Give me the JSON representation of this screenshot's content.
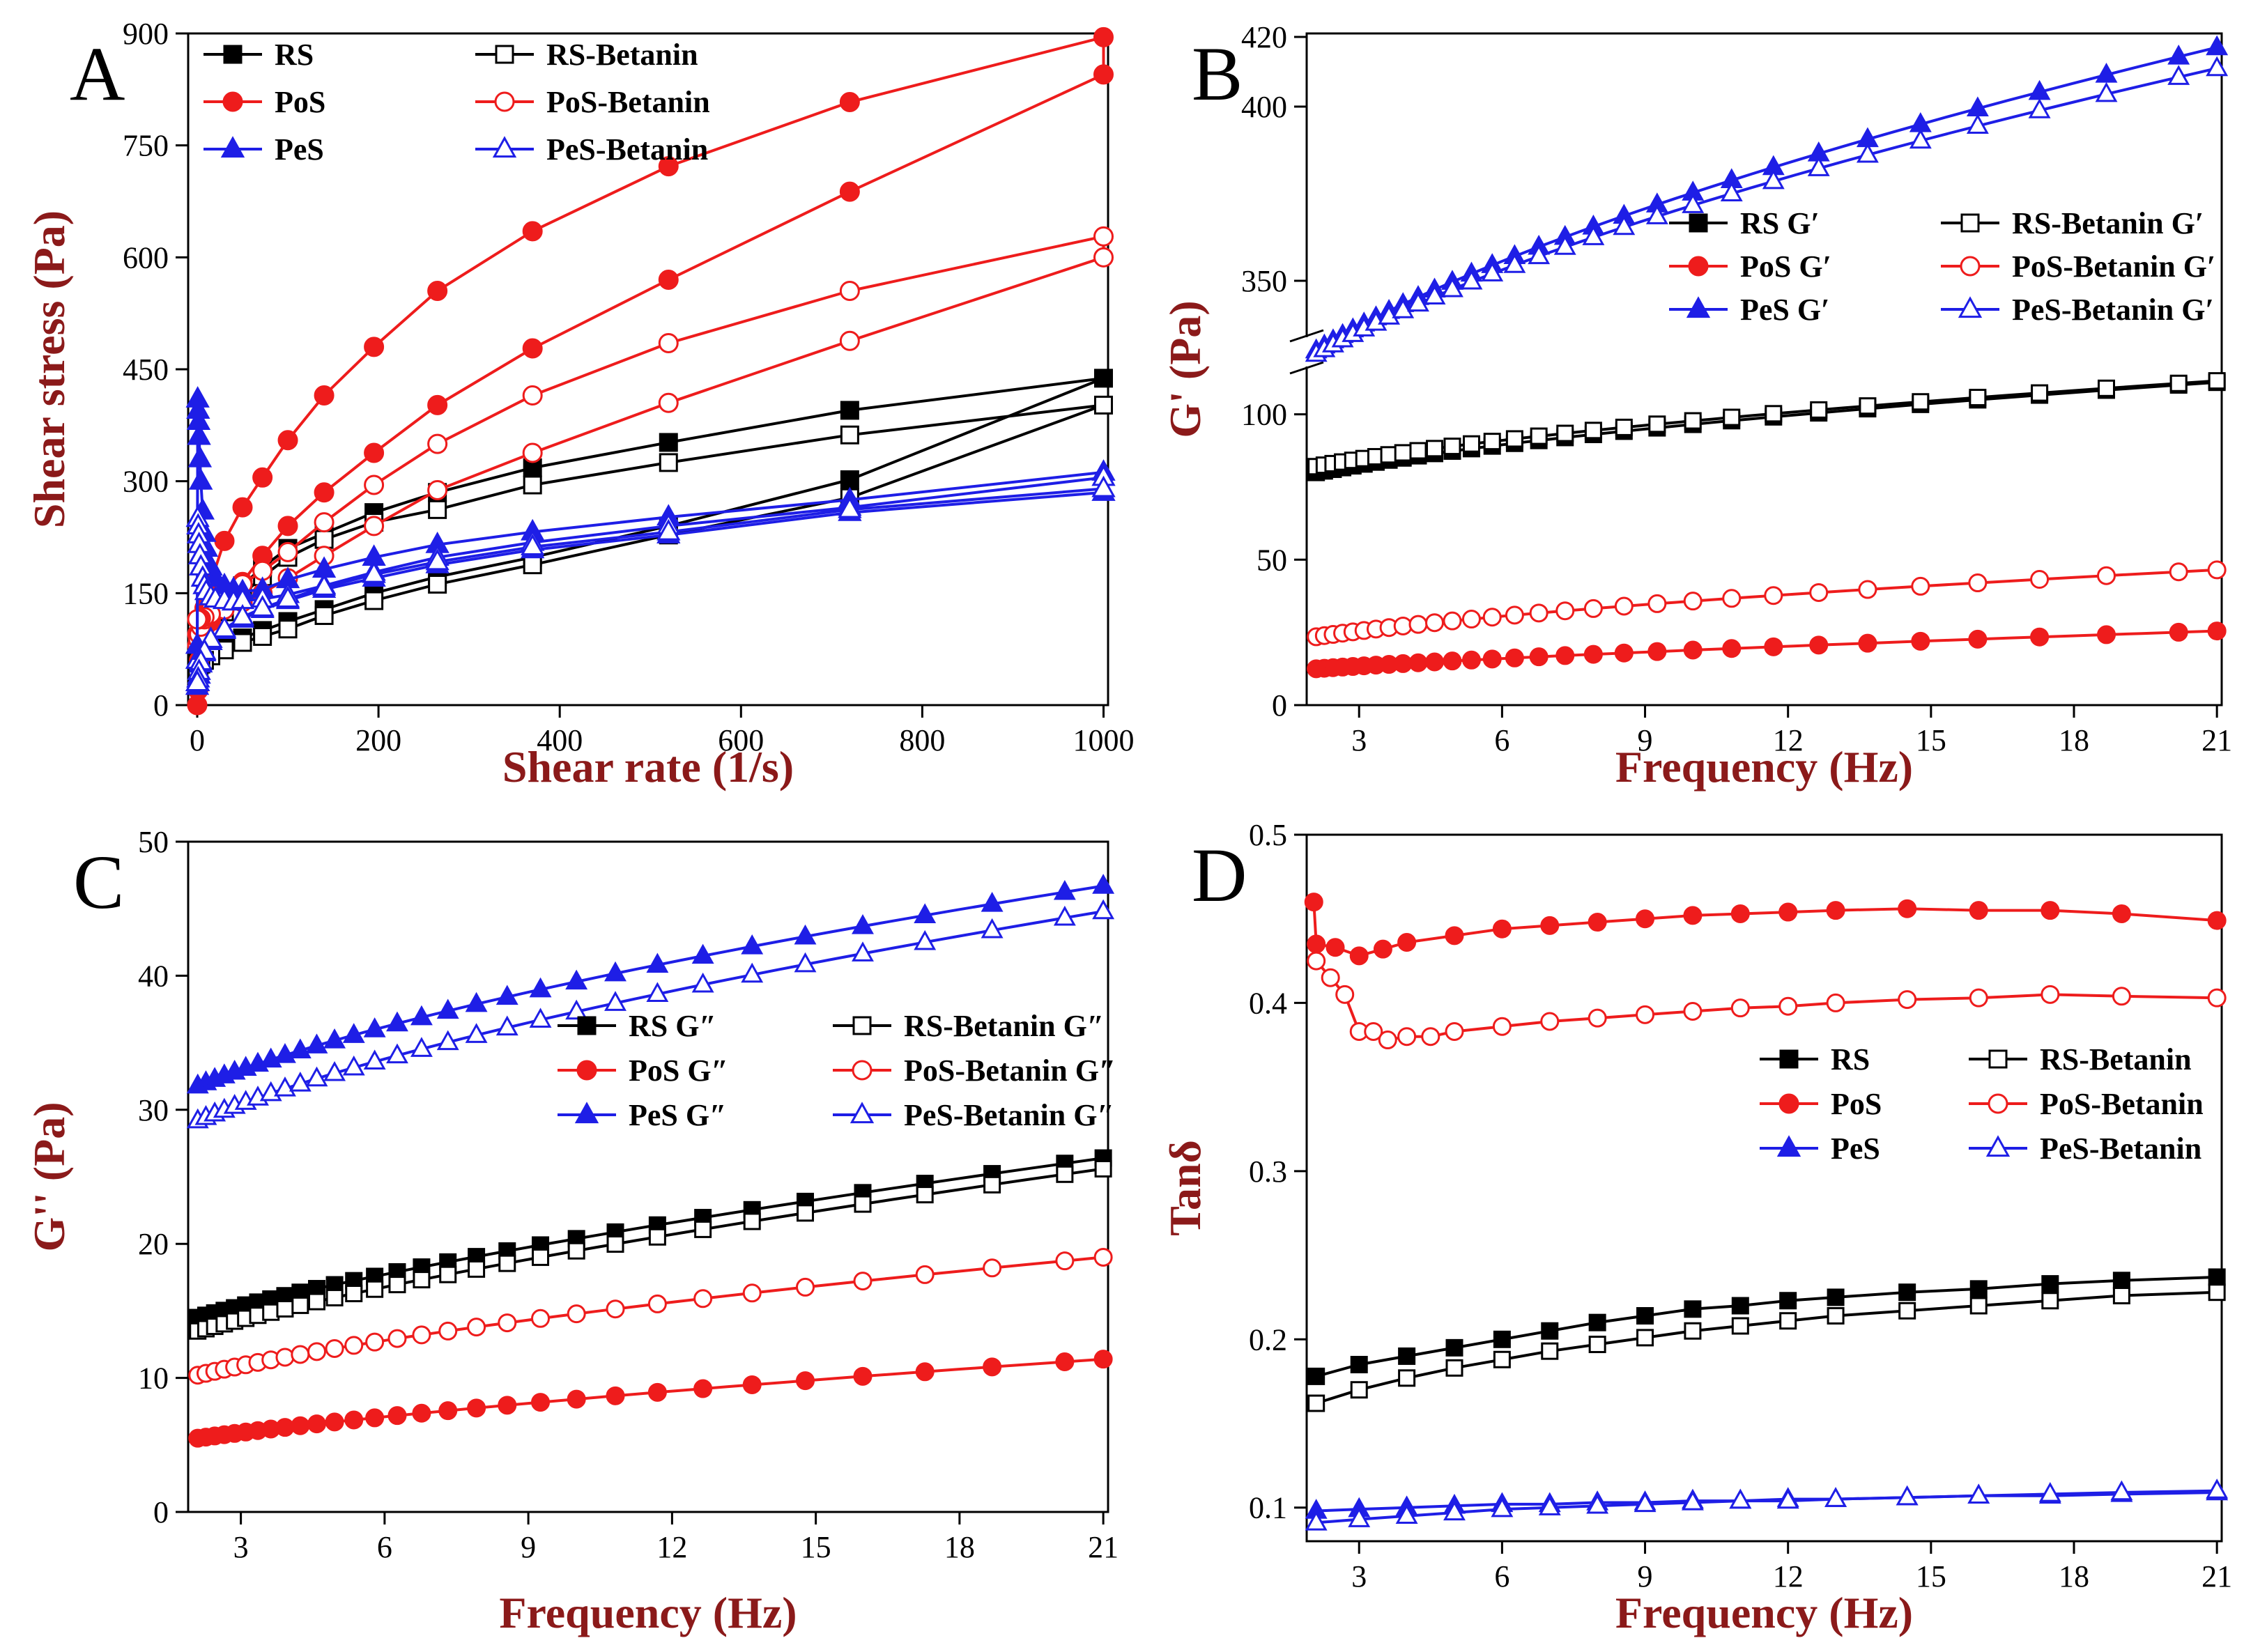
{
  "colors": {
    "RS": "#000000",
    "PoS": "#ee1c1c",
    "PeS": "#1e1ee6",
    "axis_title": "#8b1a1a"
  },
  "chart_data": [
    {
      "panel": "A",
      "type": "line",
      "xlabel": "Shear rate (1/s)",
      "ylabel": "Shear stress (Pa)",
      "xlim": [
        -10,
        1005
      ],
      "ylim": [
        0,
        900
      ],
      "xticks": [
        0,
        200,
        400,
        600,
        800,
        1000
      ],
      "yticks": [
        0,
        150,
        300,
        450,
        600,
        750,
        900
      ],
      "legend_position": "top-left",
      "legend_cols": 2,
      "series": [
        {
          "name": "RS",
          "color": "#000000",
          "marker": "square",
          "filled": true,
          "label": "RS",
          "x": [
            0,
            1,
            2,
            4,
            8,
            15,
            30,
            50,
            72,
            100,
            140,
            195,
            265,
            370,
            520,
            720,
            1000,
            720,
            520,
            370,
            265,
            195,
            140,
            100,
            72,
            50,
            30,
            15,
            8,
            4,
            2,
            1,
            0
          ],
          "y": [
            50,
            60,
            68,
            80,
            95,
            112,
            135,
            160,
            185,
            210,
            230,
            258,
            285,
            318,
            352,
            395,
            438,
            302,
            240,
            198,
            172,
            150,
            128,
            112,
            100,
            90,
            80,
            72,
            66,
            62,
            58,
            55,
            52
          ]
        },
        {
          "name": "RS-Betanin",
          "color": "#000000",
          "marker": "square",
          "filled": false,
          "label": "RS-Betanin",
          "x": [
            0,
            1,
            2,
            4,
            8,
            15,
            30,
            50,
            72,
            100,
            140,
            195,
            265,
            370,
            520,
            720,
            1000,
            720,
            520,
            370,
            265,
            195,
            140,
            100,
            72,
            50,
            30,
            15,
            8,
            4,
            2,
            1,
            0
          ],
          "y": [
            40,
            50,
            58,
            70,
            82,
            100,
            125,
            148,
            172,
            198,
            222,
            245,
            262,
            295,
            325,
            362,
            402,
            278,
            228,
            188,
            162,
            140,
            120,
            102,
            92,
            84,
            74,
            66,
            60,
            55,
            50,
            46,
            44
          ]
        },
        {
          "name": "PoS",
          "color": "#ee1c1c",
          "marker": "circle",
          "filled": true,
          "label": "PoS",
          "x": [
            0,
            1,
            2,
            4,
            8,
            15,
            30,
            50,
            72,
            100,
            140,
            195,
            265,
            370,
            520,
            720,
            1000,
            1000,
            720,
            520,
            370,
            265,
            195,
            140,
            100,
            72,
            50,
            30,
            15,
            8,
            4,
            2,
            1,
            0
          ],
          "y": [
            0,
            20,
            60,
            100,
            130,
            165,
            220,
            265,
            305,
            355,
            415,
            480,
            555,
            635,
            722,
            808,
            895,
            845,
            688,
            570,
            478,
            402,
            338,
            285,
            240,
            200,
            165,
            130,
            112,
            102,
            98,
            96,
            95,
            95
          ]
        },
        {
          "name": "PoS-Betanin",
          "color": "#ee1c1c",
          "marker": "circle",
          "filled": false,
          "label": "PoS-Betanin",
          "x": [
            0,
            1,
            2,
            4,
            8,
            15,
            30,
            50,
            72,
            100,
            140,
            195,
            265,
            370,
            520,
            720,
            1000,
            1000,
            720,
            520,
            370,
            265,
            195,
            140,
            100,
            72,
            50,
            30,
            15,
            8,
            4,
            2,
            1,
            0
          ],
          "y": [
            80,
            88,
            95,
            105,
            115,
            128,
            145,
            162,
            180,
            205,
            245,
            295,
            350,
            415,
            485,
            555,
            628,
            600,
            488,
            405,
            338,
            288,
            240,
            200,
            170,
            150,
            138,
            128,
            122,
            118,
            116,
            115,
            115,
            115
          ]
        },
        {
          "name": "PeS",
          "color": "#1e1ee6",
          "marker": "triangle",
          "filled": true,
          "label": "PeS",
          "x": [
            0,
            0.5,
            1,
            1.5,
            2,
            3,
            4,
            6,
            8,
            10,
            15,
            20,
            30,
            40,
            50,
            72,
            100,
            140,
            195,
            265,
            370,
            520,
            720,
            1000,
            1000,
            720,
            520,
            370,
            265,
            195,
            140,
            100,
            72,
            50,
            30,
            15,
            8,
            4,
            2,
            1,
            0
          ],
          "y": [
            80,
            410,
            395,
            380,
            360,
            330,
            300,
            260,
            230,
            210,
            185,
            170,
            160,
            155,
            152,
            155,
            168,
            182,
            198,
            215,
            232,
            252,
            275,
            312,
            285,
            258,
            228,
            208,
            188,
            170,
            155,
            140,
            128,
            115,
            100,
            85,
            70,
            55,
            40,
            30,
            25
          ]
        },
        {
          "name": "PeS-Betanin",
          "color": "#1e1ee6",
          "marker": "triangle",
          "filled": false,
          "label": "PeS-Betanin",
          "x": [
            0,
            0.5,
            1,
            1.5,
            2,
            3,
            4,
            6,
            8,
            10,
            15,
            20,
            30,
            40,
            50,
            72,
            100,
            140,
            195,
            265,
            370,
            520,
            720,
            1000,
            1000,
            720,
            520,
            370,
            265,
            195,
            140,
            100,
            72,
            50,
            30,
            15,
            8,
            4,
            2,
            1,
            0
          ],
          "y": [
            60,
            250,
            240,
            228,
            215,
            200,
            185,
            170,
            160,
            152,
            145,
            142,
            140,
            138,
            140,
            142,
            148,
            160,
            178,
            198,
            218,
            240,
            265,
            305,
            290,
            262,
            232,
            212,
            192,
            175,
            158,
            142,
            130,
            118,
            102,
            88,
            72,
            58,
            45,
            35,
            30
          ]
        }
      ]
    },
    {
      "panel": "B",
      "type": "line",
      "xlabel": "Frequency (Hz)",
      "ylabel": "G' (Pa)",
      "xlim": [
        1.9,
        21.1
      ],
      "ylim_lower": [
        0,
        115
      ],
      "ylim_upper": [
        335,
        421
      ],
      "xticks": [
        3,
        6,
        9,
        12,
        15,
        18,
        21
      ],
      "yticks_lower": [
        0,
        50,
        100
      ],
      "yticks_upper": [
        350,
        400,
        420
      ],
      "legend_position": "center-right",
      "legend_cols": 2,
      "series": [
        {
          "name": "RS G′",
          "color": "#000000",
          "marker": "square",
          "filled": true,
          "label": "RS G′",
          "y0": 80,
          "y1": 111,
          "p": 0.55
        },
        {
          "name": "RS-Betanin G′",
          "color": "#000000",
          "marker": "square",
          "filled": false,
          "label": "RS-Betanin G′",
          "y0": 82,
          "y1": 111.5,
          "p": 0.55
        },
        {
          "name": "PoS G′",
          "color": "#ee1c1c",
          "marker": "circle",
          "filled": true,
          "label": "PoS G′",
          "y0": 12.5,
          "y1": 25.5,
          "p": 0.7
        },
        {
          "name": "PoS-Betanin G′",
          "color": "#ee1c1c",
          "marker": "circle",
          "filled": false,
          "label": "PoS-Betanin G′",
          "y0": 23.5,
          "y1": 46.5,
          "p": 0.55
        },
        {
          "name": "PeS G′",
          "color": "#1e1ee6",
          "marker": "triangle",
          "filled": true,
          "label": "PeS G′",
          "y0": 330,
          "y1": 417,
          "p": 0.6
        },
        {
          "name": "PeS-Betanin G′",
          "color": "#1e1ee6",
          "marker": "triangle",
          "filled": false,
          "label": "PeS-Betanin G′",
          "y0": 329,
          "y1": 411,
          "p": 0.6
        }
      ]
    },
    {
      "panel": "C",
      "type": "line",
      "xlabel": "Frequency (Hz)",
      "ylabel": "G'' (Pa)",
      "xlim": [
        1.9,
        21.1
      ],
      "ylim": [
        0,
        50
      ],
      "xticks": [
        3,
        6,
        9,
        12,
        15,
        18,
        21
      ],
      "yticks": [
        0,
        10,
        20,
        30,
        40,
        50
      ],
      "legend_position": "center-right",
      "legend_cols": 2,
      "series": [
        {
          "name": "RS G″",
          "color": "#000000",
          "marker": "square",
          "filled": true,
          "label": "RS G″",
          "y0": 14.5,
          "y1": 26.4,
          "p": 0.7
        },
        {
          "name": "RS-Betanin G″",
          "color": "#000000",
          "marker": "square",
          "filled": false,
          "label": "RS-Betanin G″",
          "y0": 13.5,
          "y1": 25.6,
          "p": 0.7
        },
        {
          "name": "PoS G″",
          "color": "#ee1c1c",
          "marker": "circle",
          "filled": true,
          "label": "PoS G″",
          "y0": 5.5,
          "y1": 11.4,
          "p": 0.7
        },
        {
          "name": "PoS-Betanin G″",
          "color": "#ee1c1c",
          "marker": "circle",
          "filled": false,
          "label": "PoS-Betanin G″",
          "y0": 10.2,
          "y1": 19.0,
          "p": 0.6
        },
        {
          "name": "PeS G″",
          "color": "#1e1ee6",
          "marker": "triangle",
          "filled": true,
          "label": "PeS G″",
          "y0": 31.8,
          "y1": 46.7,
          "p": 0.6
        },
        {
          "name": "PeS-Betanin G″",
          "color": "#1e1ee6",
          "marker": "triangle",
          "filled": false,
          "label": "PeS-Betanin G″",
          "y0": 29.2,
          "y1": 44.8,
          "p": 0.6
        }
      ]
    },
    {
      "panel": "D",
      "type": "line",
      "xlabel": "Frequency (Hz)",
      "ylabel": "Tanδ",
      "xlim": [
        1.9,
        21.1
      ],
      "ylim": [
        0.08,
        0.5
      ],
      "xticks": [
        3,
        6,
        9,
        12,
        15,
        18,
        21
      ],
      "yticks": [
        0.1,
        0.2,
        0.3,
        0.4,
        0.5
      ],
      "legend_position": "center-right",
      "legend_cols": 2,
      "series": [
        {
          "name": "RS",
          "color": "#000000",
          "marker": "square",
          "filled": true,
          "label": "RS",
          "x": [
            2.1,
            3,
            4,
            5,
            6,
            7,
            8,
            9,
            10,
            11,
            12,
            13,
            14.5,
            16,
            17.5,
            19,
            21
          ],
          "y": [
            0.178,
            0.185,
            0.19,
            0.195,
            0.2,
            0.205,
            0.21,
            0.214,
            0.218,
            0.22,
            0.223,
            0.225,
            0.228,
            0.23,
            0.233,
            0.235,
            0.237
          ]
        },
        {
          "name": "RS-Betanin",
          "color": "#000000",
          "marker": "square",
          "filled": false,
          "label": "RS-Betanin",
          "x": [
            2.1,
            3,
            4,
            5,
            6,
            7,
            8,
            9,
            10,
            11,
            12,
            13,
            14.5,
            16,
            17.5,
            19,
            21
          ],
          "y": [
            0.162,
            0.17,
            0.177,
            0.183,
            0.188,
            0.193,
            0.197,
            0.201,
            0.205,
            0.208,
            0.211,
            0.214,
            0.217,
            0.22,
            0.223,
            0.226,
            0.228
          ]
        },
        {
          "name": "PoS",
          "color": "#ee1c1c",
          "marker": "circle",
          "filled": true,
          "label": "PoS",
          "x": [
            2.05,
            2.1,
            2.5,
            3,
            3.5,
            4,
            5,
            6,
            7,
            8,
            9,
            10,
            11,
            12,
            13,
            14.5,
            16,
            17.5,
            19,
            21
          ],
          "y": [
            0.46,
            0.435,
            0.433,
            0.428,
            0.432,
            0.436,
            0.44,
            0.444,
            0.446,
            0.448,
            0.45,
            0.452,
            0.453,
            0.454,
            0.455,
            0.456,
            0.455,
            0.455,
            0.453,
            0.449
          ]
        },
        {
          "name": "PoS-Betanin",
          "color": "#ee1c1c",
          "marker": "circle",
          "filled": false,
          "label": "PoS-Betanin",
          "x": [
            2.1,
            2.4,
            2.7,
            3,
            3.3,
            3.6,
            4,
            4.5,
            5,
            6,
            7,
            8,
            9,
            10,
            11,
            12,
            13,
            14.5,
            16,
            17.5,
            19,
            21
          ],
          "y": [
            0.425,
            0.415,
            0.405,
            0.383,
            0.383,
            0.378,
            0.38,
            0.38,
            0.383,
            0.386,
            0.389,
            0.391,
            0.393,
            0.395,
            0.397,
            0.398,
            0.4,
            0.402,
            0.403,
            0.405,
            0.404,
            0.403
          ]
        },
        {
          "name": "PeS",
          "color": "#1e1ee6",
          "marker": "triangle",
          "filled": true,
          "label": "PeS",
          "x": [
            2.1,
            3,
            4,
            5,
            6,
            7,
            8,
            9,
            10,
            11,
            12,
            13,
            14.5,
            16,
            17.5,
            19,
            21
          ],
          "y": [
            0.098,
            0.099,
            0.1,
            0.101,
            0.102,
            0.102,
            0.103,
            0.103,
            0.104,
            0.104,
            0.105,
            0.105,
            0.106,
            0.107,
            0.107,
            0.108,
            0.109
          ]
        },
        {
          "name": "PeS-Betanin",
          "color": "#1e1ee6",
          "marker": "triangle",
          "filled": false,
          "label": "PeS-Betanin",
          "x": [
            2.1,
            3,
            4,
            5,
            6,
            7,
            8,
            9,
            10,
            11,
            12,
            13,
            14.5,
            16,
            17.5,
            19,
            21
          ],
          "y": [
            0.091,
            0.093,
            0.095,
            0.097,
            0.099,
            0.1,
            0.101,
            0.102,
            0.103,
            0.104,
            0.104,
            0.105,
            0.106,
            0.107,
            0.108,
            0.109,
            0.11
          ]
        }
      ]
    }
  ]
}
